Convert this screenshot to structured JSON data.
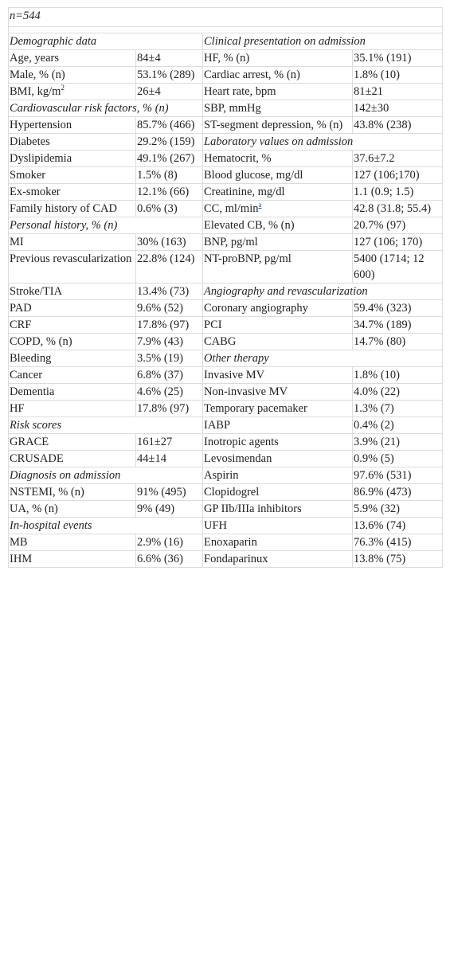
{
  "header": {
    "n_label": "n=544"
  },
  "rows": [
    {
      "type": "head2",
      "l": "Demographic data",
      "r": "Clinical presentation on admission"
    },
    {
      "type": "pair",
      "l": [
        "Age, years",
        "84±4"
      ],
      "r": [
        "HF, % (n)",
        "35.1% (191)"
      ]
    },
    {
      "type": "pair",
      "l": [
        "Male, % (n)",
        "53.1% (289)"
      ],
      "r": [
        "Cardiac arrest, % (n)",
        "1.8% (10)"
      ]
    },
    {
      "type": "pair",
      "l": [
        "BMI, kg/m",
        "26±4"
      ],
      "l_sup": "2",
      "r": [
        "Heart rate, bpm",
        "81±21"
      ]
    },
    {
      "type": "headL",
      "l": "Cardiovascular risk factors, % (n)",
      "r": [
        "SBP, mmHg",
        "142±30"
      ]
    },
    {
      "type": "pair",
      "l": [
        "Hypertension",
        "85.7% (466)"
      ],
      "r": [
        "ST-segment depression, % (n)",
        "43.8% (238)"
      ]
    },
    {
      "type": "headR",
      "l": [
        "Diabetes",
        "29.2% (159)"
      ],
      "r": "Laboratory values on admission"
    },
    {
      "type": "pair",
      "l": [
        "Dyslipidemia",
        "49.1% (267)"
      ],
      "r": [
        "Hematocrit, %",
        "37.6±7.2"
      ]
    },
    {
      "type": "pair",
      "l": [
        "Smoker",
        "1.5% (8)"
      ],
      "r": [
        "Blood glucose, mg/dl",
        "127 (106;170)"
      ]
    },
    {
      "type": "pair",
      "l": [
        "Ex-smoker",
        "12.1% (66)"
      ],
      "r": [
        "Creatinine, mg/dl",
        "1.1 (0.9; 1.5)"
      ]
    },
    {
      "type": "pair",
      "l": [
        "Family history of CAD",
        "0.6% (3)"
      ],
      "r": [
        "CC, ml/min",
        "42.8 (31.8; 55.4)"
      ],
      "r_sup": "a"
    },
    {
      "type": "headL",
      "l": "Personal history, % (n)",
      "r": [
        "Elevated CB, % (n)",
        "20.7% (97)"
      ]
    },
    {
      "type": "pair",
      "l": [
        "MI",
        "30% (163)"
      ],
      "r": [
        "BNP, pg/ml",
        "127 (106; 170)"
      ]
    },
    {
      "type": "pair",
      "l": [
        "Previous revascularization",
        "22.8% (124)"
      ],
      "r": [
        "NT-proBNP, pg/ml",
        "5400 (1714; 12 600)"
      ]
    },
    {
      "type": "headR",
      "l": [
        "Stroke/TIA",
        "13.4% (73)"
      ],
      "r": "Angiography and revascularization"
    },
    {
      "type": "pair",
      "l": [
        "PAD",
        "9.6% (52)"
      ],
      "r": [
        "Coronary angiography",
        "59.4% (323)"
      ]
    },
    {
      "type": "pair",
      "l": [
        "CRF",
        "17.8% (97)"
      ],
      "r": [
        "PCI",
        "34.7% (189)"
      ]
    },
    {
      "type": "pair",
      "l": [
        "COPD, % (n)",
        "7.9% (43)"
      ],
      "r": [
        "CABG",
        "14.7% (80)"
      ]
    },
    {
      "type": "headR",
      "l": [
        "Bleeding",
        "3.5% (19)"
      ],
      "r": "Other therapy"
    },
    {
      "type": "pair",
      "l": [
        "Cancer",
        "6.8% (37)"
      ],
      "r": [
        "Invasive MV",
        "1.8% (10)"
      ]
    },
    {
      "type": "pair",
      "l": [
        "Dementia",
        "4.6% (25)"
      ],
      "r": [
        "Non-invasive MV",
        "4.0% (22)"
      ]
    },
    {
      "type": "pair",
      "l": [
        "HF",
        "17.8% (97)"
      ],
      "r": [
        "Temporary pacemaker",
        "1.3% (7)"
      ]
    },
    {
      "type": "headL",
      "l": "Risk scores",
      "r": [
        "IABP",
        "0.4% (2)"
      ]
    },
    {
      "type": "pair",
      "l": [
        "GRACE",
        "161±27"
      ],
      "r": [
        "Inotropic agents",
        "3.9% (21)"
      ]
    },
    {
      "type": "pair",
      "l": [
        "CRUSADE",
        "44±14"
      ],
      "r": [
        "Levosimendan",
        "0.9% (5)"
      ]
    },
    {
      "type": "headL",
      "l": "Diagnosis on admission",
      "r": [
        "Aspirin",
        "97.6% (531)"
      ]
    },
    {
      "type": "pair",
      "l": [
        "NSTEMI, % (n)",
        "91% (495)"
      ],
      "r": [
        "Clopidogrel",
        "86.9% (473)"
      ]
    },
    {
      "type": "pair",
      "l": [
        "UA, % (n)",
        "9% (49)"
      ],
      "r": [
        "GP IIb/IIIa inhibitors",
        "5.9% (32)"
      ]
    },
    {
      "type": "headL",
      "l": "In-hospital events",
      "r": [
        "UFH",
        "13.6% (74)"
      ]
    },
    {
      "type": "pair",
      "l": [
        "MB",
        "2.9% (16)"
      ],
      "r": [
        "Enoxaparin",
        "76.3% (415)"
      ]
    },
    {
      "type": "pair",
      "l": [
        "IHM",
        "6.6% (36)"
      ],
      "r": [
        "Fondaparinux",
        "13.8% (75)"
      ]
    }
  ]
}
